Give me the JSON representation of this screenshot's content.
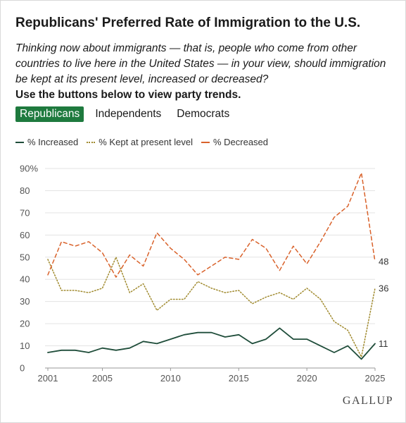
{
  "title": "Republicans' Preferred Rate of Immigration to the U.S.",
  "subtitle": "Thinking now about immigrants — that is, people who come from other countries to live here in the United States — in your view, should immigration be kept at its present level, increased or decreased?",
  "instruction": "Use the buttons below to view party trends.",
  "tabs": [
    {
      "label": "Republicans",
      "active": true
    },
    {
      "label": "Independents",
      "active": false
    },
    {
      "label": "Democrats",
      "active": false
    }
  ],
  "legend": {
    "increased": "% Increased",
    "kept": "% Kept at present level",
    "decreased": "% Decreased"
  },
  "brand": "GALLUP",
  "colors": {
    "increased": "#1f4d3a",
    "kept": "#a08a2e",
    "decreased": "#d9622b",
    "active_tab": "#1e7a3e",
    "grid": "#e3e3e3"
  },
  "chart_data": {
    "type": "line",
    "ylim": [
      0,
      90
    ],
    "xlim": [
      2001,
      2025
    ],
    "y_ticks": [
      "0",
      "10",
      "20",
      "30",
      "40",
      "50",
      "60",
      "70",
      "80",
      "90%"
    ],
    "x_ticks": [
      "2001",
      "2005",
      "2010",
      "2015",
      "2020",
      "2025"
    ],
    "grid": true,
    "legend_position": "top-left",
    "end_labels": {
      "decreased": "48",
      "kept": "36",
      "increased": "11"
    },
    "x": [
      2001,
      2002,
      2003,
      2004,
      2005,
      2006,
      2007,
      2008,
      2009,
      2010,
      2011,
      2012,
      2013,
      2014,
      2015,
      2016,
      2017,
      2018,
      2019,
      2020,
      2021,
      2022,
      2023,
      2024,
      2025
    ],
    "series": [
      {
        "key": "increased",
        "name": "% Increased",
        "values": [
          7,
          8,
          8,
          7,
          9,
          8,
          9,
          12,
          11,
          13,
          15,
          16,
          16,
          14,
          15,
          11,
          13,
          18,
          13,
          13,
          10,
          7,
          10,
          4,
          11
        ]
      },
      {
        "key": "kept",
        "name": "% Kept at present level",
        "values": [
          49,
          35,
          35,
          34,
          36,
          50,
          34,
          38,
          26,
          31,
          31,
          39,
          36,
          34,
          35,
          29,
          32,
          34,
          31,
          36,
          31,
          21,
          17,
          5,
          36
        ]
      },
      {
        "key": "decreased",
        "name": "% Decreased",
        "values": [
          42,
          57,
          55,
          57,
          52,
          41,
          51,
          46,
          61,
          54,
          49,
          42,
          46,
          50,
          49,
          58,
          54,
          44,
          55,
          47,
          57,
          68,
          73,
          88,
          48
        ]
      }
    ]
  }
}
